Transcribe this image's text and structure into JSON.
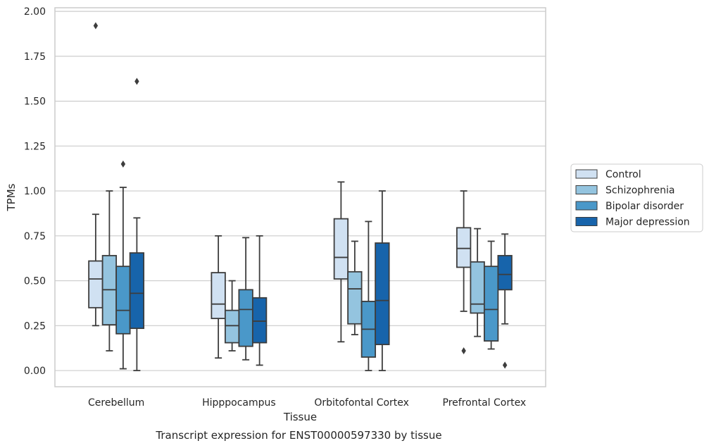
{
  "chart_data": {
    "type": "box",
    "title": "",
    "caption": "Transcript expression for ENST00000597330 by tissue",
    "xlabel": "Tissue",
    "ylabel": "TPMs",
    "ylim": [
      -0.09,
      2.02
    ],
    "yticks": [
      "0.00",
      "0.25",
      "0.50",
      "0.75",
      "1.00",
      "1.25",
      "1.50",
      "1.75",
      "2.00"
    ],
    "ytick_values": [
      0,
      0.25,
      0.5,
      0.75,
      1.0,
      1.25,
      1.5,
      1.75,
      2.0
    ],
    "grid": true,
    "legend_position": "right",
    "categories": [
      "Cerebellum",
      "Hipppocampus",
      "Orbitofontal Cortex",
      "Prefrontal Cortex"
    ],
    "series": [
      {
        "name": "Control",
        "color": "#d0e1f2",
        "boxes": [
          {
            "whisker_low": 0.25,
            "q1": 0.35,
            "median": 0.51,
            "q3": 0.61,
            "whisker_high": 0.87,
            "outliers": [
              1.92
            ]
          },
          {
            "whisker_low": 0.07,
            "q1": 0.29,
            "median": 0.37,
            "q3": 0.545,
            "whisker_high": 0.75,
            "outliers": []
          },
          {
            "whisker_low": 0.16,
            "q1": 0.51,
            "median": 0.63,
            "q3": 0.845,
            "whisker_high": 1.05,
            "outliers": []
          },
          {
            "whisker_low": 0.33,
            "q1": 0.575,
            "median": 0.68,
            "q3": 0.795,
            "whisker_high": 1.0,
            "outliers": [
              0.11
            ]
          }
        ]
      },
      {
        "name": "Schizophrenia",
        "color": "#94c4df",
        "boxes": [
          {
            "whisker_low": 0.11,
            "q1": 0.255,
            "median": 0.45,
            "q3": 0.64,
            "whisker_high": 1.0,
            "outliers": []
          },
          {
            "whisker_low": 0.11,
            "q1": 0.155,
            "median": 0.25,
            "q3": 0.335,
            "whisker_high": 0.5,
            "outliers": []
          },
          {
            "whisker_low": 0.2,
            "q1": 0.26,
            "median": 0.455,
            "q3": 0.55,
            "whisker_high": 0.72,
            "outliers": []
          },
          {
            "whisker_low": 0.19,
            "q1": 0.32,
            "median": 0.37,
            "q3": 0.605,
            "whisker_high": 0.79,
            "outliers": []
          }
        ]
      },
      {
        "name": "Bipolar disorder",
        "color": "#4a98c9",
        "boxes": [
          {
            "whisker_low": 0.01,
            "q1": 0.205,
            "median": 0.335,
            "q3": 0.58,
            "whisker_high": 1.02,
            "outliers": [
              1.15
            ]
          },
          {
            "whisker_low": 0.06,
            "q1": 0.135,
            "median": 0.34,
            "q3": 0.45,
            "whisker_high": 0.74,
            "outliers": []
          },
          {
            "whisker_low": 0.0,
            "q1": 0.075,
            "median": 0.23,
            "q3": 0.385,
            "whisker_high": 0.83,
            "outliers": []
          },
          {
            "whisker_low": 0.12,
            "q1": 0.165,
            "median": 0.34,
            "q3": 0.58,
            "whisker_high": 0.72,
            "outliers": []
          }
        ]
      },
      {
        "name": "Major depression",
        "color": "#1764ab",
        "boxes": [
          {
            "whisker_low": 0.0,
            "q1": 0.235,
            "median": 0.43,
            "q3": 0.655,
            "whisker_high": 0.85,
            "outliers": [
              1.61
            ]
          },
          {
            "whisker_low": 0.03,
            "q1": 0.155,
            "median": 0.275,
            "q3": 0.405,
            "whisker_high": 0.75,
            "outliers": []
          },
          {
            "whisker_low": 0.0,
            "q1": 0.145,
            "median": 0.39,
            "q3": 0.71,
            "whisker_high": 1.0,
            "outliers": []
          },
          {
            "whisker_low": 0.26,
            "q1": 0.45,
            "median": 0.535,
            "q3": 0.64,
            "whisker_high": 0.76,
            "outliers": [
              0.03
            ]
          }
        ]
      }
    ]
  }
}
